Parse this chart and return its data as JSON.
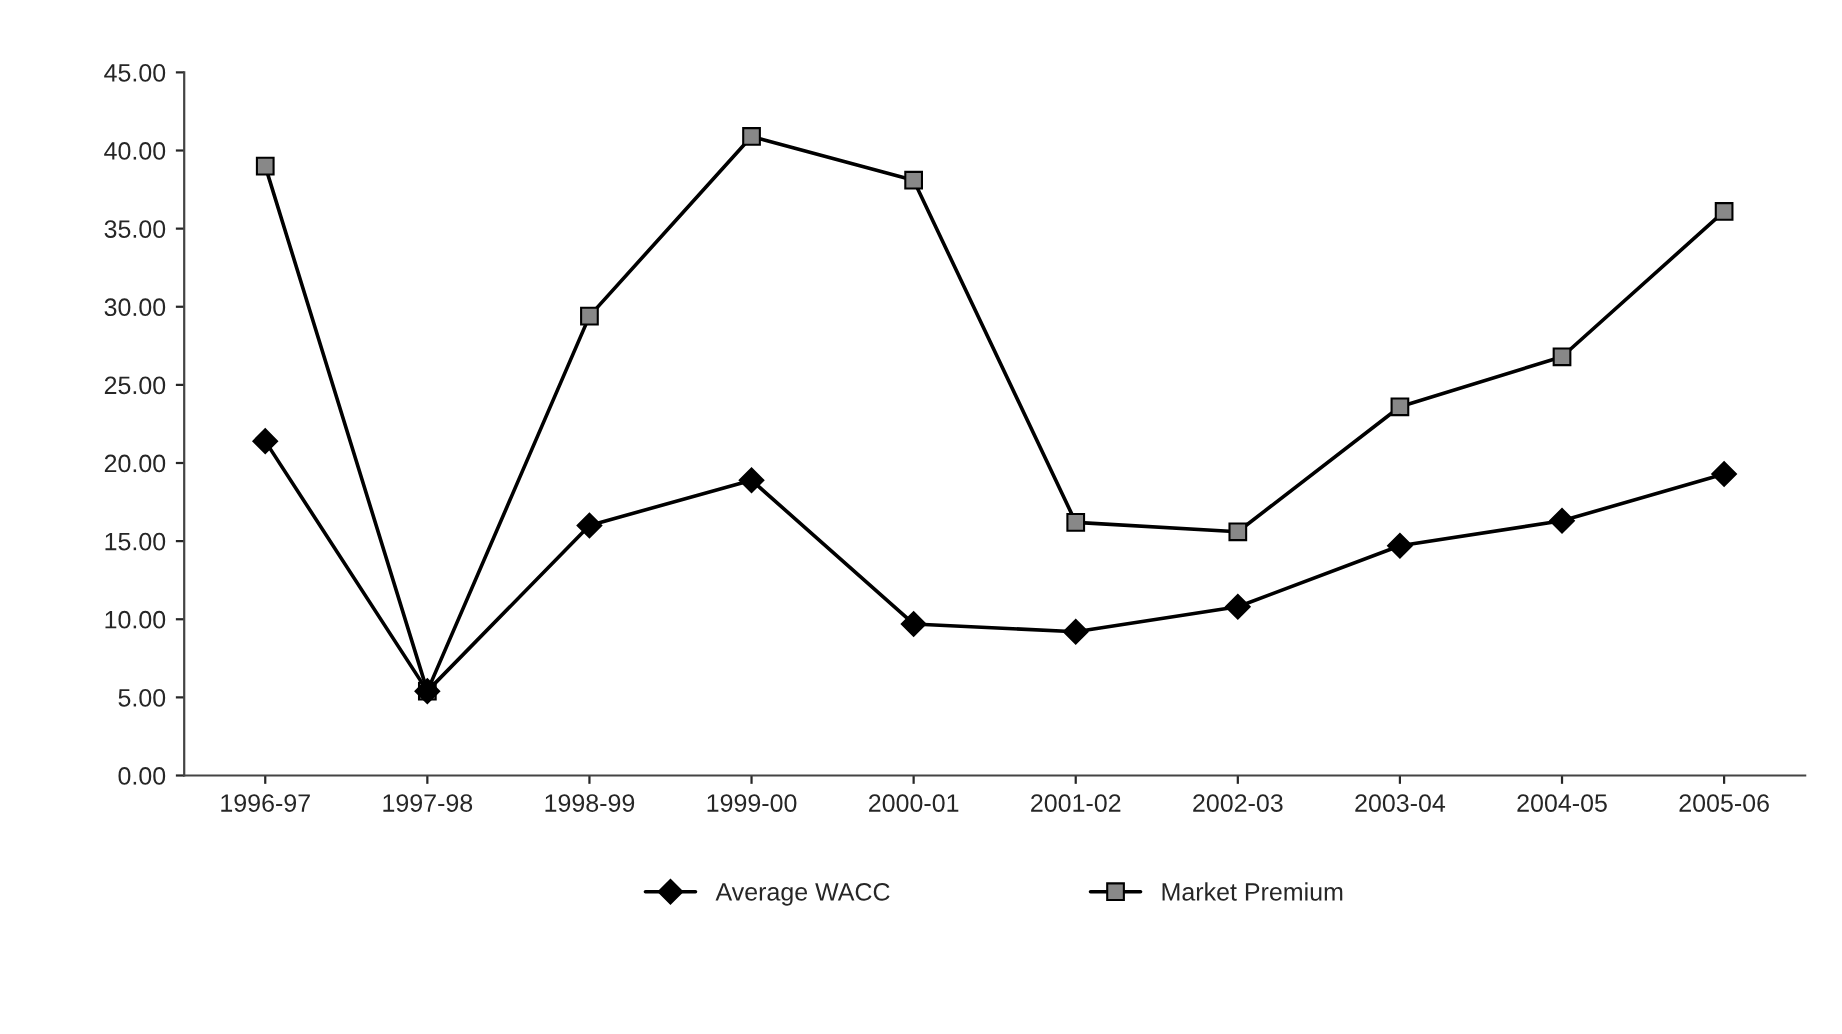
{
  "chart_data": {
    "type": "line",
    "categories": [
      "1996-97",
      "1997-98",
      "1998-99",
      "1999-00",
      "2000-01",
      "2001-02",
      "2002-03",
      "2003-04",
      "2004-05",
      "2005-06"
    ],
    "series": [
      {
        "name": "Average WACC",
        "color": "#000000",
        "marker": "diamond",
        "values": [
          21.4,
          5.4,
          16.0,
          18.9,
          9.7,
          9.2,
          10.8,
          14.7,
          16.3,
          19.3
        ]
      },
      {
        "name": "Market Premium",
        "color": "#000000",
        "marker": "square",
        "values": [
          39.0,
          5.4,
          29.4,
          40.9,
          38.1,
          16.2,
          15.6,
          23.6,
          26.8,
          36.1
        ]
      }
    ],
    "ylim": [
      0,
      45
    ],
    "yticks": [
      {
        "value": 0,
        "label": "0.00"
      },
      {
        "value": 5,
        "label": "5.00"
      },
      {
        "value": 10,
        "label": "10.00"
      },
      {
        "value": 15,
        "label": "15.00"
      },
      {
        "value": 20,
        "label": "20.00"
      },
      {
        "value": 25,
        "label": "25.00"
      },
      {
        "value": 30,
        "label": "30.00"
      },
      {
        "value": 35,
        "label": "35.00"
      },
      {
        "value": 40,
        "label": "40.00"
      },
      {
        "value": 45,
        "label": "45.00"
      }
    ],
    "grid": false,
    "legend": "bottom"
  }
}
